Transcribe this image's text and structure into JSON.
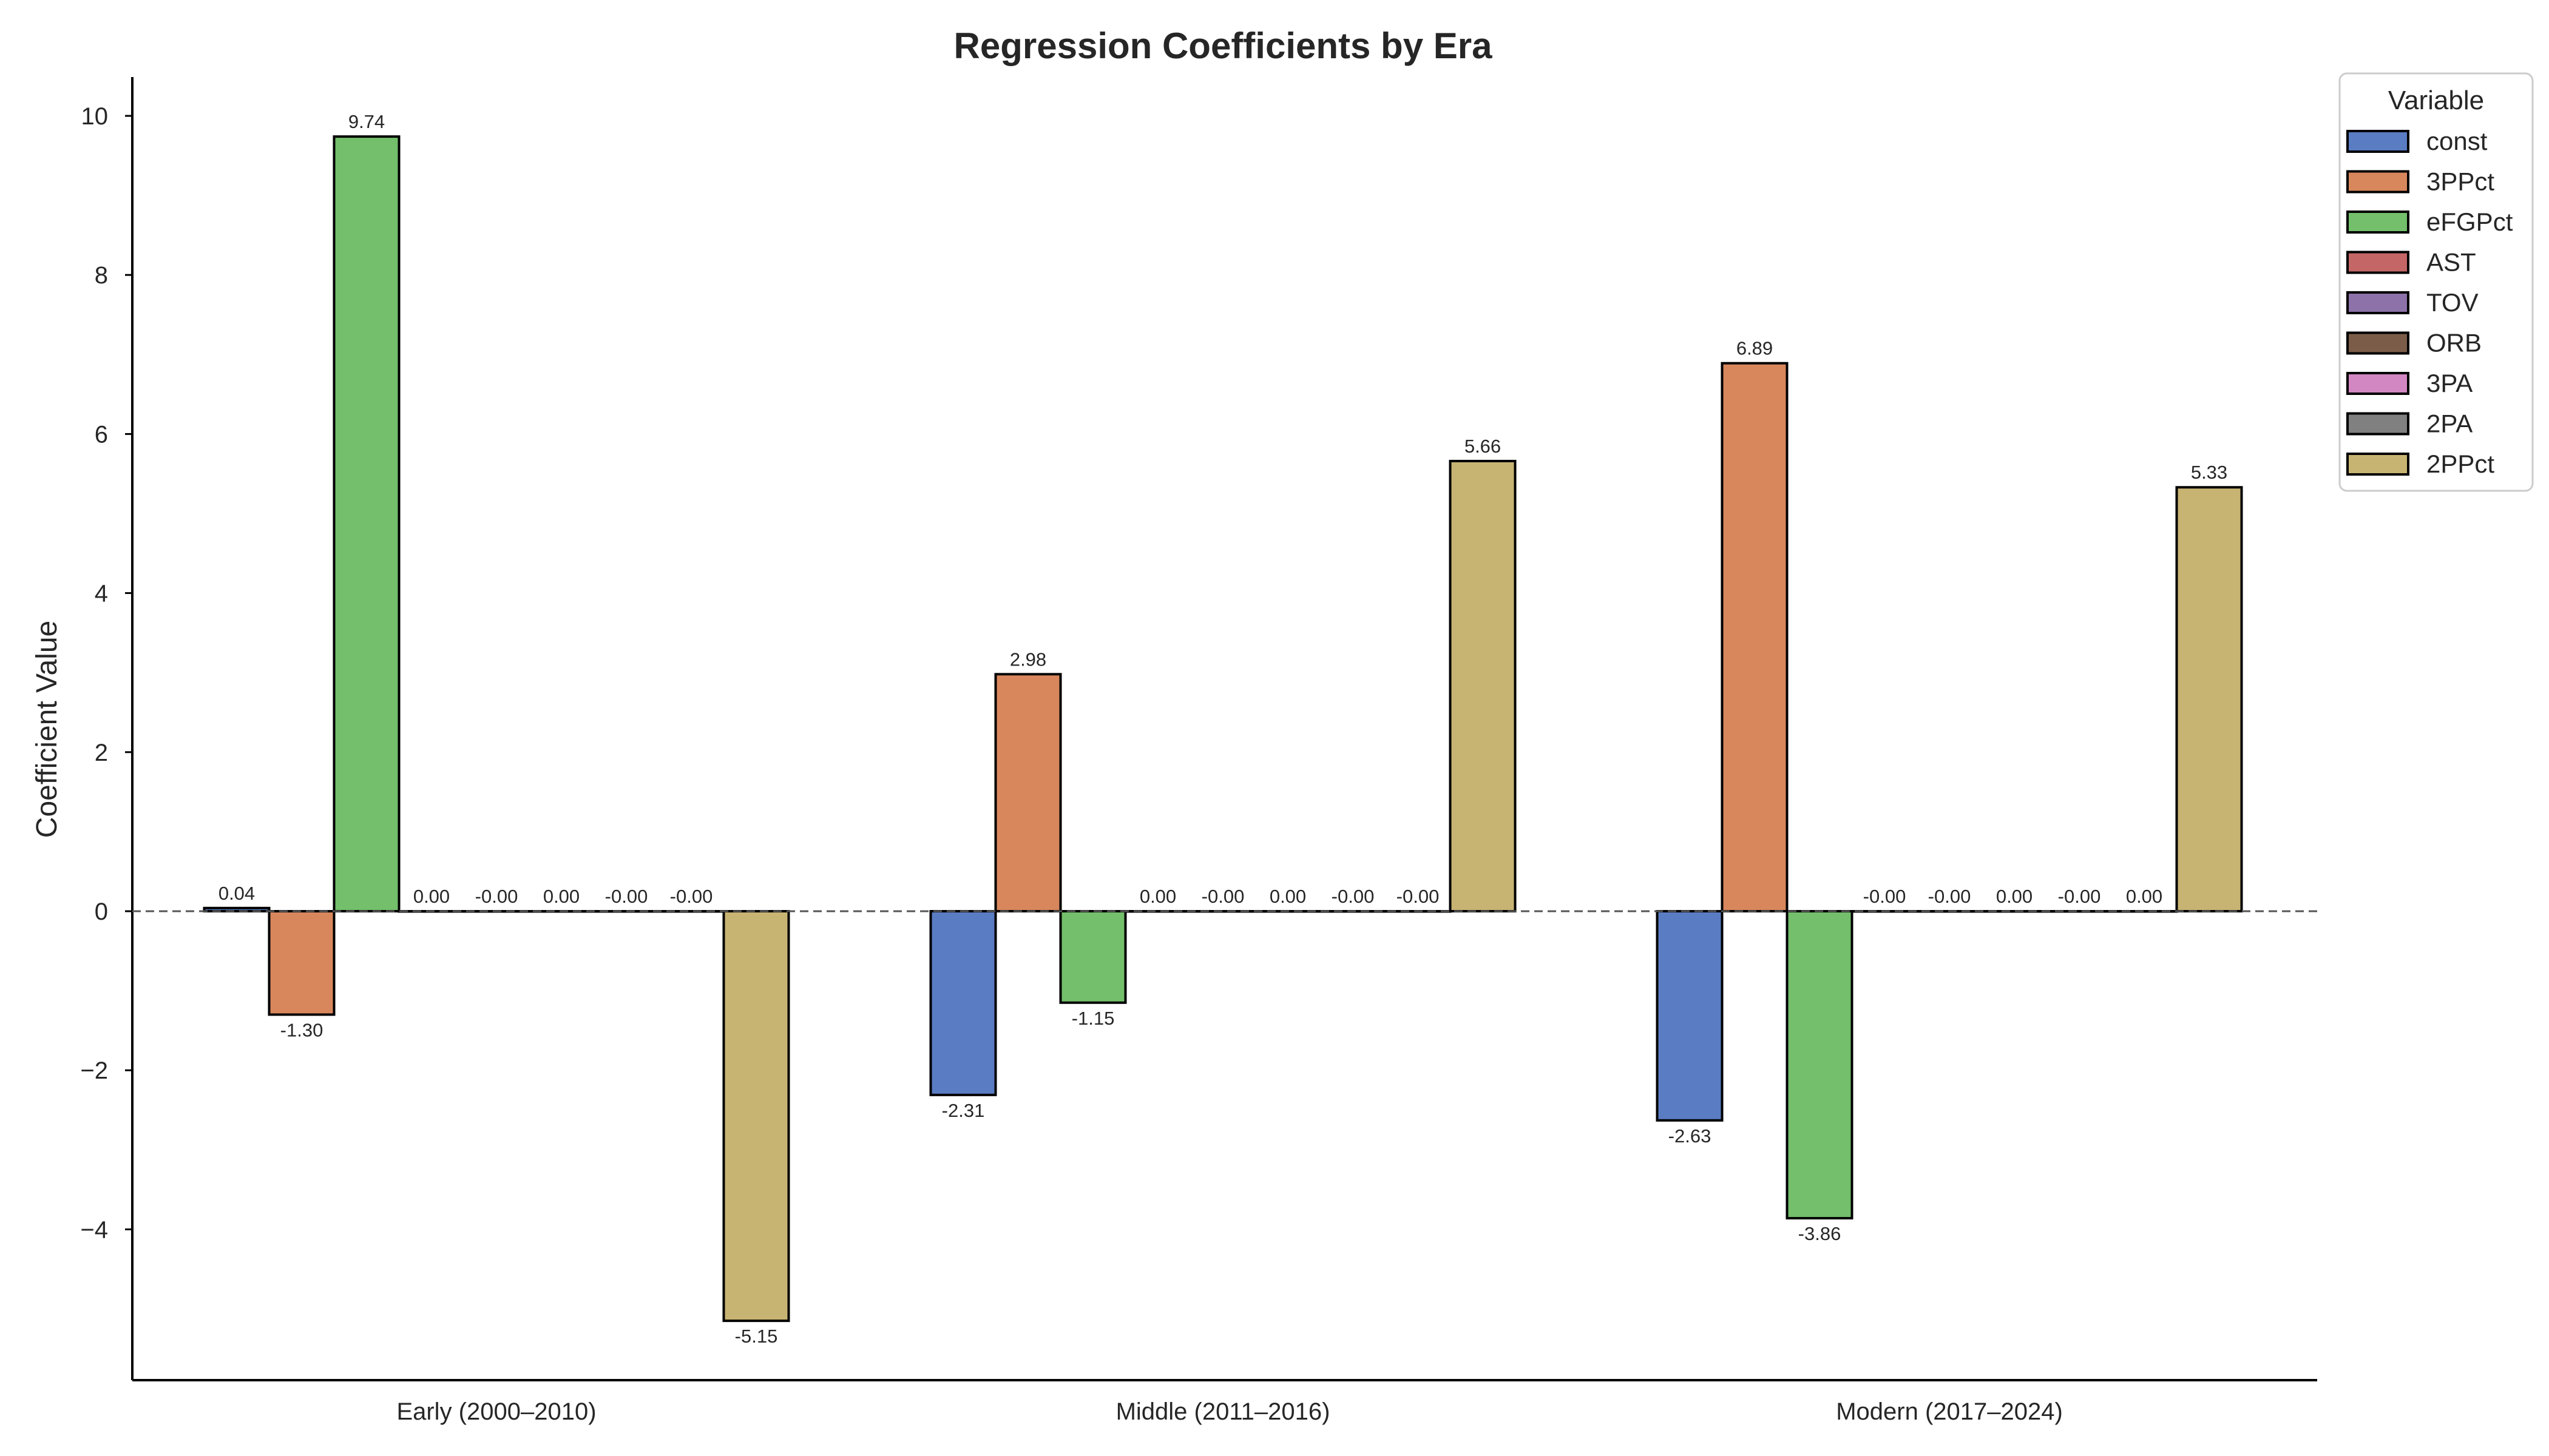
{
  "chart_data": {
    "type": "bar",
    "title": "Regression Coefficients by Era",
    "xlabel": "",
    "ylabel": "Coefficient Value",
    "categories": [
      "Early (2000–2010)",
      "Middle (2011–2016)",
      "Modern (2017–2024)"
    ],
    "ylim": [
      -5.9,
      10.5
    ],
    "yticks": [
      -4,
      -2,
      0,
      2,
      4,
      6,
      8,
      10
    ],
    "ytick_labels": [
      "−4",
      "−2",
      "0",
      "2",
      "4",
      "6",
      "8",
      "10"
    ],
    "zero_line": "dashed",
    "grid": false,
    "legend": {
      "title": "Variable",
      "placement": "upper right, outside plot"
    },
    "series": [
      {
        "name": "const",
        "color": "#5a7cc2",
        "values": [
          0.04,
          -2.31,
          -2.63
        ],
        "labels": [
          "0.04",
          "-2.31",
          "-2.63"
        ]
      },
      {
        "name": "3PPct",
        "color": "#d8875d",
        "values": [
          -1.3,
          2.98,
          6.89
        ],
        "labels": [
          "-1.30",
          "2.98",
          "6.89"
        ]
      },
      {
        "name": "eFGPct",
        "color": "#73bf6b",
        "values": [
          9.74,
          -1.15,
          -3.86
        ],
        "labels": [
          "9.74",
          "-1.15",
          "-3.86"
        ]
      },
      {
        "name": "AST",
        "color": "#c46666",
        "values": [
          0.0,
          0.0,
          -0.0
        ],
        "labels": [
          "0.00",
          "0.00",
          "-0.00"
        ]
      },
      {
        "name": "TOV",
        "color": "#8c72a8",
        "values": [
          -0.0,
          -0.0,
          -0.0
        ],
        "labels": [
          "-0.00",
          "-0.00",
          "-0.00"
        ]
      },
      {
        "name": "ORB",
        "color": "#7a5c48",
        "values": [
          0.0,
          0.0,
          0.0
        ],
        "labels": [
          "0.00",
          "0.00",
          "0.00"
        ]
      },
      {
        "name": "3PA",
        "color": "#d287c2",
        "values": [
          -0.0,
          -0.0,
          -0.0
        ],
        "labels": [
          "-0.00",
          "-0.00",
          "-0.00"
        ]
      },
      {
        "name": "2PA",
        "color": "#808080",
        "values": [
          -0.0,
          -0.0,
          0.0
        ],
        "labels": [
          "-0.00",
          "-0.00",
          "0.00"
        ]
      },
      {
        "name": "2PPct",
        "color": "#c8b472",
        "values": [
          -5.15,
          5.66,
          5.33
        ],
        "labels": [
          "-5.15",
          "5.66",
          "5.33"
        ]
      }
    ]
  }
}
